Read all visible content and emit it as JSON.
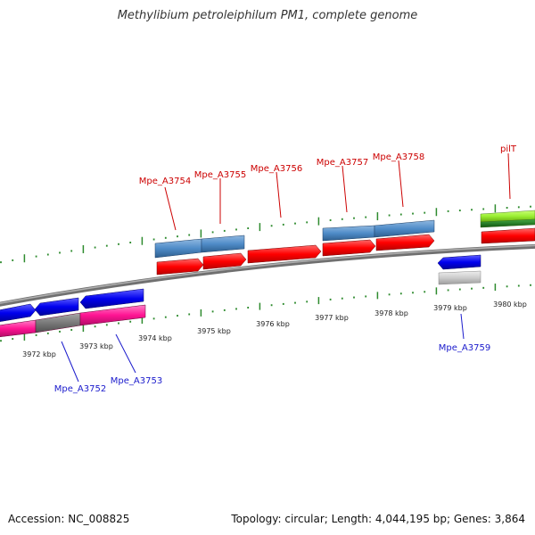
{
  "title": "Methylibium petroleiphilum PM1, complete genome",
  "footer": {
    "accession": "Accession: NC_008825",
    "summary": "Topology: circular; Length: 4,044,195 bp; Genes: 3,864"
  },
  "colors": {
    "backbone": "#8c8c8c",
    "tick": "#2e8b2e",
    "forward_label": "#cc0000",
    "reverse_label": "#1a1acc",
    "cds": "#ff0000",
    "gene_forward": "#4f8cc8",
    "gene_reverse": "#0000ee",
    "rna": "#ff1493",
    "pseudo": "#808080",
    "misc_light": "#cccccc",
    "trna": "#99ee33",
    "other": "#228822"
  },
  "kbp_labels": [
    "3972 kbp",
    "3973 kbp",
    "3974 kbp",
    "3975 kbp",
    "3976 kbp",
    "3977 kbp",
    "3978 kbp",
    "3979 kbp",
    "3980 kbp"
  ],
  "gene_labels": {
    "forward": [
      "Mpe_A3754",
      "Mpe_A3755",
      "Mpe_A3756",
      "Mpe_A3757",
      "Mpe_A3758",
      "pilT"
    ],
    "reverse": [
      "Mpe_A3752",
      "Mpe_A3753",
      "Mpe_A3759"
    ]
  }
}
